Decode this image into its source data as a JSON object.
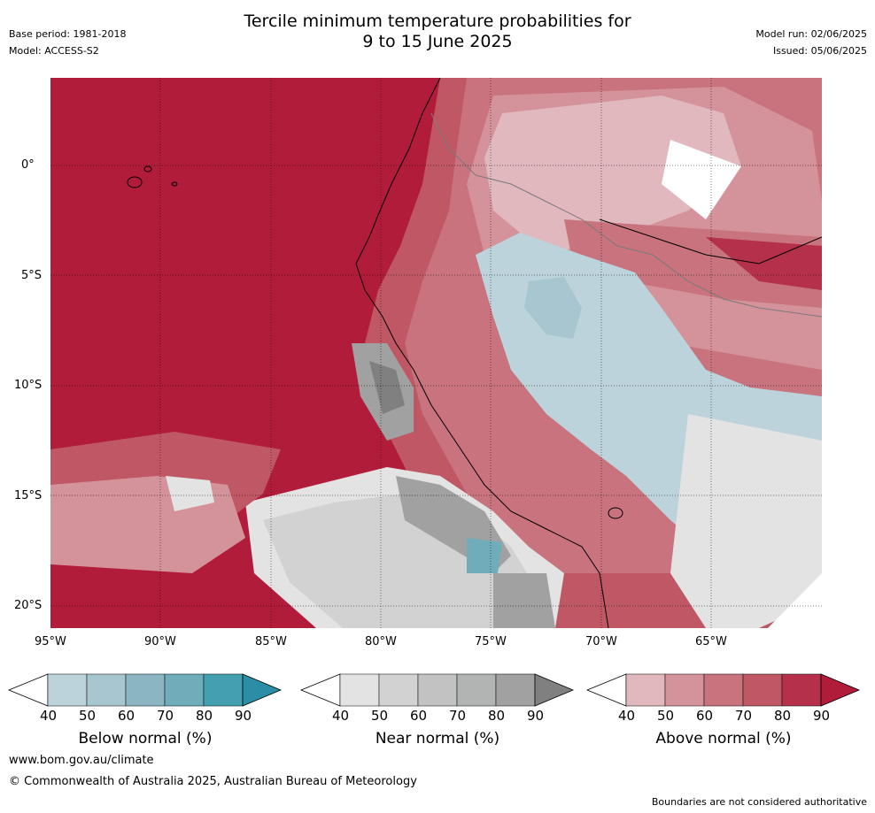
{
  "header": {
    "title_line1": "Tercile minimum temperature probabilities for",
    "title_line2": "9 to 15 June 2025",
    "base_period": "Base period: 1981-2018",
    "model": "Model: ACCESS-S2",
    "model_run": "Model run: 02/06/2025",
    "issued": "Issued: 05/06/2025"
  },
  "map": {
    "lat_labels": [
      "0°",
      "5°S",
      "10°S",
      "15°S",
      "20°S"
    ],
    "lon_labels": [
      "95°W",
      "90°W",
      "85°W",
      "80°W",
      "75°W",
      "70°W",
      "65°W"
    ],
    "region": "western South America and eastern Pacific"
  },
  "legend": {
    "ticks": [
      "40",
      "50",
      "60",
      "70",
      "80",
      "90"
    ],
    "bars": [
      {
        "label": "Below normal (%)",
        "colors": [
          "#bcd3db",
          "#a7c6cf",
          "#8bb5c2",
          "#6eadb9",
          "#44a0b0",
          "#2c8ea6"
        ]
      },
      {
        "label": "Near normal (%)",
        "colors": [
          "#e3e3e3",
          "#d2d2d2",
          "#c2c2c2",
          "#b2b4b4",
          "#a1a1a1",
          "#808080"
        ]
      },
      {
        "label": "Above normal (%)",
        "colors": [
          "#e0b8bd",
          "#d4939b",
          "#c8737e",
          "#bf5765",
          "#b5304a",
          "#b11c3a"
        ]
      }
    ]
  },
  "footer": {
    "url": "www.bom.gov.au/climate",
    "copyright": "© Commonwealth of Australia 2025, Australian Bureau of Meteorology",
    "disclaimer": "Boundaries are not considered authoritative"
  }
}
